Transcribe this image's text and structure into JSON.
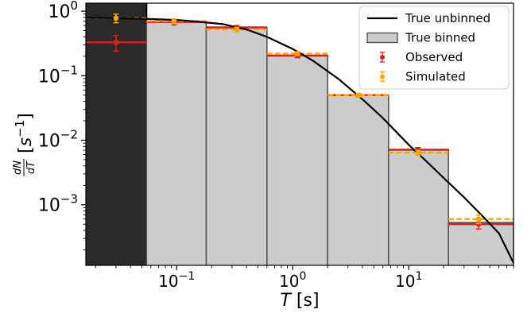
{
  "chart_data": {
    "type": "bar",
    "xscale": "log",
    "yscale": "log",
    "xlim": [
      0.0165,
      80
    ],
    "ylim": [
      0.000115,
      1.33
    ],
    "x_ticks": [
      {
        "value": 0.1,
        "base": "10",
        "exp": "−1"
      },
      {
        "value": 1,
        "base": "10",
        "exp": "0"
      },
      {
        "value": 10,
        "base": "10",
        "exp": "1"
      }
    ],
    "y_ticks": [
      {
        "value": 1,
        "base": "10",
        "exp": "0"
      },
      {
        "value": 0.1,
        "base": "10",
        "exp": "−1"
      },
      {
        "value": 0.01,
        "base": "10",
        "exp": "−2"
      },
      {
        "value": 0.001,
        "base": "10",
        "exp": "−3"
      }
    ],
    "xlabel": {
      "symbol": "T",
      "unit": "[s]"
    },
    "ylabel": {
      "num": "dN",
      "den": "dT",
      "unit_open": "[",
      "unit_base": "s",
      "unit_exp": "−1",
      "unit_close": "]"
    },
    "dark_region": [
      0.0165,
      0.055
    ],
    "bins": [
      {
        "lo": 0.0165,
        "hi": 0.055,
        "true_binned": 0.78,
        "observed": 0.33,
        "observed_err": [
          0.09,
          0.09
        ],
        "simulated": 0.78,
        "simulated_err": [
          0.12,
          0.12
        ],
        "x_center": 0.03
      },
      {
        "lo": 0.055,
        "hi": 0.18,
        "true_binned": 0.68,
        "observed": 0.68,
        "observed_err": [
          0.07,
          0.07
        ],
        "simulated": 0.7,
        "simulated_err": [
          0.06,
          0.06
        ],
        "x_center": 0.095
      },
      {
        "lo": 0.18,
        "hi": 0.6,
        "true_binned": 0.56,
        "observed": 0.56,
        "observed_err": [
          0.04,
          0.04
        ],
        "simulated": 0.52,
        "simulated_err": [
          0.04,
          0.04
        ],
        "x_center": 0.33
      },
      {
        "lo": 0.6,
        "hi": 2.0,
        "true_binned": 0.205,
        "observed": 0.205,
        "observed_err": [
          0.015,
          0.015
        ],
        "simulated": 0.22,
        "simulated_err": [
          0.015,
          0.015
        ],
        "x_center": 1.1
      },
      {
        "lo": 2.0,
        "hi": 6.7,
        "true_binned": 0.05,
        "observed": 0.05,
        "observed_err": [
          0.003,
          0.003
        ],
        "simulated": 0.05,
        "simulated_err": [
          0.003,
          0.003
        ],
        "x_center": 3.7
      },
      {
        "lo": 6.7,
        "hi": 22,
        "true_binned": 0.0072,
        "observed": 0.0071,
        "observed_err": [
          0.0006,
          0.0006
        ],
        "simulated": 0.0064,
        "simulated_err": [
          0.0006,
          0.0006
        ],
        "x_center": 12
      },
      {
        "lo": 22,
        "hi": 80,
        "true_binned": 0.00053,
        "observed": 0.0005,
        "observed_err": [
          8e-05,
          8e-05
        ],
        "simulated": 0.0006,
        "simulated_err": [
          9e-05,
          9e-05
        ],
        "x_center": 40
      }
    ],
    "true_unbinned": {
      "x": [
        0.0165,
        0.025,
        0.04,
        0.06,
        0.1,
        0.15,
        0.25,
        0.4,
        0.6,
        1.0,
        1.5,
        2.5,
        4,
        6,
        10,
        15,
        20,
        30,
        45,
        60,
        80
      ],
      "y": [
        0.79,
        0.785,
        0.77,
        0.755,
        0.73,
        0.69,
        0.63,
        0.52,
        0.4,
        0.26,
        0.17,
        0.088,
        0.043,
        0.022,
        0.0085,
        0.0043,
        0.0026,
        0.0013,
        0.00062,
        0.00036,
        0.000125
      ]
    },
    "legend": {
      "position": "top-right",
      "entries": [
        {
          "label": "True unbinned",
          "kind": "line"
        },
        {
          "label": "True binned",
          "kind": "patch"
        },
        {
          "label": "Observed",
          "kind": "errorbar"
        },
        {
          "label": "Simulated",
          "kind": "errorbar"
        }
      ]
    },
    "colors": {
      "true_unbinned": "#000000",
      "true_binned_fill": "#cccccc",
      "true_binned_edge": "#555555",
      "observed": "#e31a1c",
      "simulated": "#ffa500",
      "dark_region": "#2a2a2a"
    }
  }
}
